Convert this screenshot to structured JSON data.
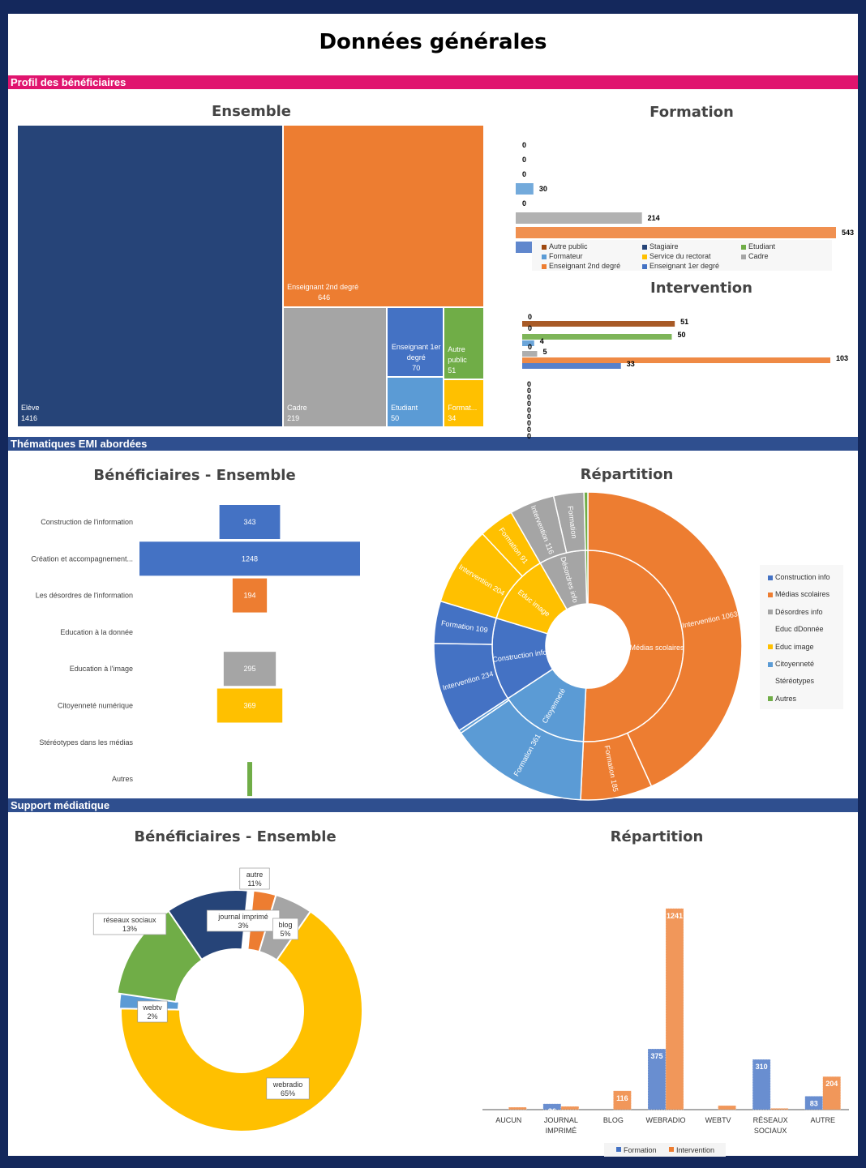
{
  "page_title": "Données générales",
  "sections": {
    "profil": "Profil des bénéficiaires",
    "thematiques": "Thématiques EMI abordées",
    "support": "Support médiatique"
  },
  "colors": {
    "frame": "#14285c",
    "band_profil": "#e0146e",
    "band_other": "#2f4f8f",
    "blue_dark": "#264478",
    "orange": "#ed7d31",
    "gray": "#a5a5a5",
    "blue": "#4472c4",
    "green": "#70ad47",
    "yellow": "#ffc000",
    "light_blue": "#5b9bd5"
  },
  "chart_data": [
    {
      "id": "ensemble",
      "type": "treemap",
      "title": "Ensemble",
      "items": [
        {
          "label": "Elève",
          "value": 1416
        },
        {
          "label": "Enseignant 2nd degré",
          "value": 646
        },
        {
          "label": "Cadre",
          "value": 219
        },
        {
          "label": "Enseignant 1er degré",
          "value": 70
        },
        {
          "label": "Autre public",
          "value": 51
        },
        {
          "label": "Etudiant",
          "value": 50
        },
        {
          "label": "Format...",
          "value": 34
        }
      ]
    },
    {
      "id": "formation",
      "type": "bar",
      "orientation": "horizontal",
      "title": "Formation",
      "categories": [
        "Autre public",
        "Stagiaire",
        "Etudiant",
        "Formateur",
        "Service du rectorat",
        "Cadre",
        "Enseignant 2nd degré",
        "Enseignant 1er degré"
      ],
      "values": [
        0,
        0,
        0,
        30,
        0,
        214,
        543,
        37
      ],
      "legend": [
        "Autre public",
        "Stagiaire",
        "Etudiant",
        "Formateur",
        "Service du rectorat",
        "Cadre",
        "Enseignant 2nd degré",
        "Enseignant 1er degré"
      ]
    },
    {
      "id": "intervention",
      "type": "bar",
      "orientation": "horizontal",
      "title": "Intervention",
      "categories": [
        "Autre public",
        "Stagiaire",
        "Etudiant",
        "Formateur",
        "Service du rectorat",
        "Cadre",
        "Enseignant 2nd degré",
        "Enseignant 1er degré",
        "Elève"
      ],
      "values": [
        0,
        51,
        0,
        50,
        4,
        0,
        5,
        103,
        33
      ],
      "extra_zero_labels": [
        "0",
        "0",
        "0",
        "0",
        "0",
        "0",
        "0",
        "0",
        "0"
      ]
    },
    {
      "id": "thematiques_ensemble",
      "type": "bar",
      "orientation": "horizontal-centered",
      "title": "Bénéficiaires - Ensemble",
      "categories": [
        "Construction de l'information",
        "Création et accompagnement...",
        "Les désordres de l'information",
        "Education à la donnée",
        "Education à l'image",
        "Citoyenneté numérique",
        "Stéréotypes dans les médias",
        "Autres"
      ],
      "values": [
        343,
        1248,
        194,
        0,
        295,
        369,
        0,
        10
      ],
      "value_labels": [
        "343",
        "1248",
        "194",
        "",
        "295",
        "369",
        "",
        ""
      ]
    },
    {
      "id": "thematiques_repartition",
      "type": "sunburst",
      "title": "Répartition",
      "inner": [
        {
          "label": "Médias scolaires",
          "value": 1248
        },
        {
          "label": "Citoyenneté",
          "value": 369
        },
        {
          "label": "Construction info",
          "value": 343
        },
        {
          "label": "Educ image",
          "value": 295
        },
        {
          "label": "Désordres info",
          "value": 194
        },
        {
          "label": "Autres",
          "value": 10
        }
      ],
      "outer": [
        {
          "label": "Intervention 1063",
          "value": 1063
        },
        {
          "label": "Formation 185",
          "value": 185
        },
        {
          "label": "Formation 361",
          "value": 361
        },
        {
          "label": "",
          "value": 8
        },
        {
          "label": "Intervention 234",
          "value": 234
        },
        {
          "label": "Formation 109",
          "value": 109
        },
        {
          "label": "Intervention 204",
          "value": 204
        },
        {
          "label": "Formation 91",
          "value": 91
        },
        {
          "label": "Intervention 116",
          "value": 116
        },
        {
          "label": "Formation",
          "value": 78
        },
        {
          "label": "",
          "value": 10
        }
      ],
      "legend": [
        "Construction info",
        "Médias scolaires",
        "Désordres info",
        "Educ dDonnée",
        "Educ image",
        "Citoyenneté",
        "Stéréotypes",
        "Autres"
      ]
    },
    {
      "id": "support_ensemble",
      "type": "pie",
      "variant": "doughnut",
      "title": "Bénéficiaires - Ensemble",
      "slices": [
        {
          "label": "autre",
          "pct": "11%",
          "value": 11
        },
        {
          "label": "journal imprimé",
          "pct": "3%",
          "value": 3
        },
        {
          "label": "blog",
          "pct": "5%",
          "value": 5
        },
        {
          "label": "webradio",
          "pct": "65%",
          "value": 65
        },
        {
          "label": "webtv",
          "pct": "2%",
          "value": 2
        },
        {
          "label": "réseaux sociaux",
          "pct": "13%",
          "value": 13
        }
      ]
    },
    {
      "id": "support_repartition",
      "type": "bar",
      "title": "Répartition",
      "categories": [
        "AUCUN",
        "JOURNAL IMPRIMÉ",
        "BLOG",
        "WEBRADIO",
        "WEBTV",
        "RÉSEAUX SOCIAUX",
        "AUTRE"
      ],
      "series": [
        {
          "name": "Formation",
          "values": [
            0,
            36,
            0,
            375,
            0,
            310,
            83
          ],
          "labels": [
            "",
            "36",
            "",
            "375",
            "",
            "310",
            "83"
          ]
        },
        {
          "name": "Intervention",
          "values": [
            15,
            20,
            116,
            1241,
            25,
            8,
            204
          ],
          "labels": [
            "",
            "",
            "116",
            "1241",
            "",
            "",
            "204"
          ]
        }
      ],
      "ylim": [
        0,
        1300
      ]
    }
  ]
}
